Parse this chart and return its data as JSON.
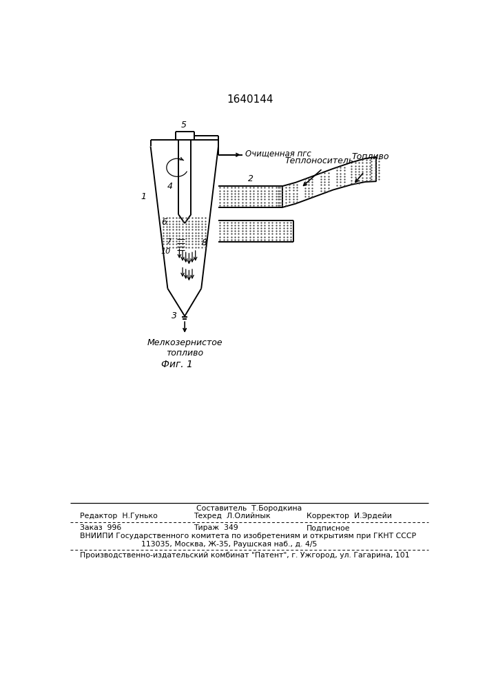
{
  "title": "1640144",
  "fig_caption": "Фиг. 1",
  "label_below": "Мелкозернистое\nтопливо",
  "label_pgs": "Очищенная пгс",
  "label_teplonositel": "Теплоноситель",
  "label_toplivo": "Топливо",
  "footer_composit": "Составитель  Т.Бородкина",
  "footer_editor": "Редактор  Н.Гунько",
  "footer_tekhred": "Техред  Л.Олийнык",
  "footer_korrektor": "Корректор  И.Эрдейи",
  "footer_zakaz": "Заказ  996",
  "footer_tirazh": "Тираж  349",
  "footer_podpisnoe": "Подписное",
  "footer_vniipи": "ВНИИПИ Государственного комитета по изобретениям и открытиям при ГКНТ СССР",
  "footer_addr": "113035, Москва, Ж-35, Раушская наб., д. 4/5",
  "footer_patent": "Производственно-издательский комбинат \"Патент\", г. Ужгород, ул. Гагарина, 101",
  "bg_color": "#ffffff",
  "line_color": "#000000"
}
